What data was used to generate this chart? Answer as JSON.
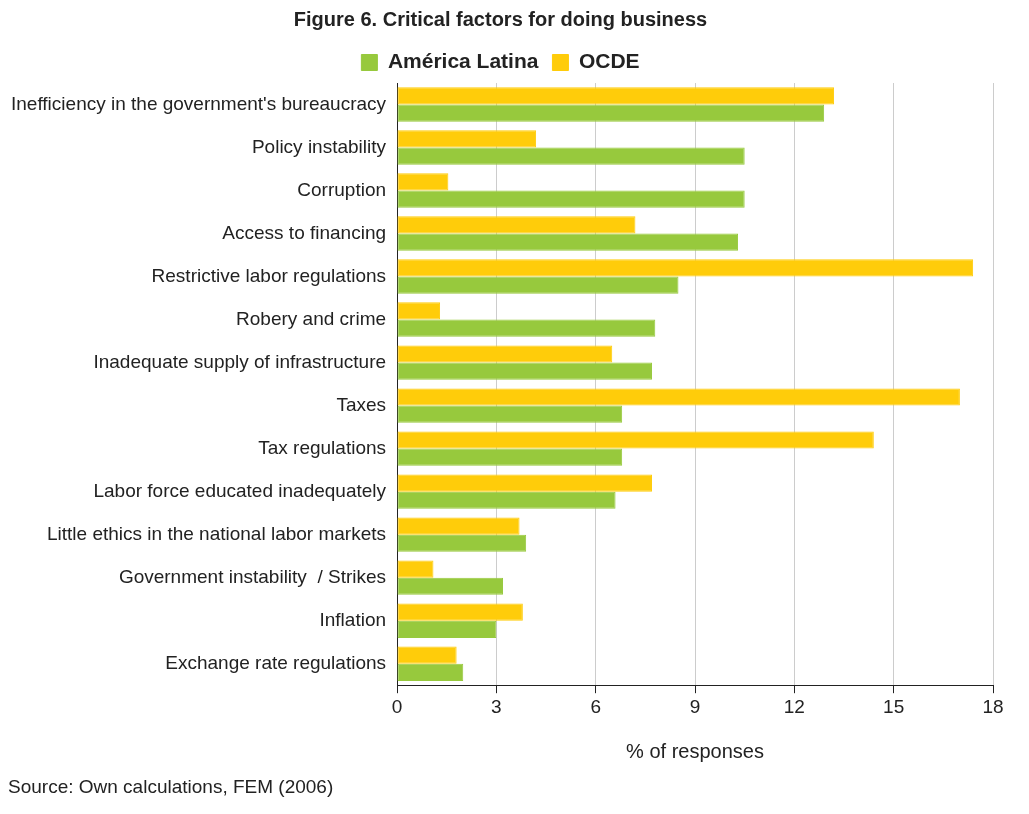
{
  "chart_data": {
    "type": "bar",
    "orientation": "horizontal",
    "title": "Figure 6. Critical factors for doing business",
    "xlabel": "% of responses",
    "categories": [
      "Inefficiency in the government's bureaucracy",
      "Policy instability",
      "Corruption",
      "Access to financing",
      "Restrictive labor regulations",
      "Robery and crime",
      "Inadequate supply of infrastructure",
      "Taxes",
      "Tax regulations",
      "Labor force educated inadequately",
      "Little ethics in the national labor markets",
      "Government instability  / Strikes",
      "Inflation",
      "Exchange rate regulations"
    ],
    "series": [
      {
        "name": "América Latina",
        "color": "#97c93d",
        "values": [
          12.9,
          10.5,
          10.5,
          10.3,
          8.5,
          7.8,
          7.7,
          6.8,
          6.8,
          6.6,
          3.9,
          3.2,
          3.0,
          2.0
        ]
      },
      {
        "name": "OCDE",
        "color": "#ffcc0a",
        "values": [
          13.2,
          4.2,
          1.55,
          7.2,
          17.4,
          1.3,
          6.5,
          17.0,
          14.4,
          7.7,
          3.7,
          1.1,
          3.8,
          1.8
        ]
      }
    ],
    "xlim": [
      0,
      18
    ],
    "xticks": [
      0,
      3,
      6,
      9,
      12,
      15,
      18
    ],
    "grid": "x",
    "legend": "top",
    "annotations": [
      "Source: Own calculations, FEM (2006)"
    ]
  }
}
